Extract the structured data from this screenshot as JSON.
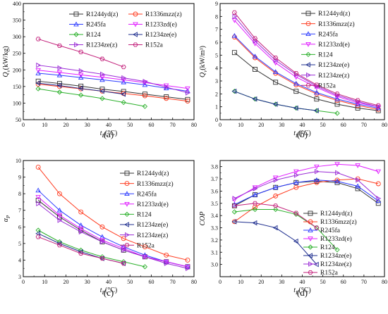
{
  "series_styles": [
    {
      "name": "R1244yd(z)",
      "color": "#333333",
      "marker": "square"
    },
    {
      "name": "R1336mzz(z)",
      "color": "#ff3b1f",
      "marker": "circle"
    },
    {
      "name": "R245fa",
      "color": "#2b3bff",
      "marker": "triangle-up"
    },
    {
      "name": "R1233zd(e)",
      "color": "#e01cff",
      "marker": "triangle-down"
    },
    {
      "name": "R124",
      "color": "#2bb02b",
      "marker": "diamond"
    },
    {
      "name": "R1234ze(e)",
      "color": "#1f2f8f",
      "marker": "triangle-left"
    },
    {
      "name": "R1234ze(z)",
      "color": "#9a2bd6",
      "marker": "triangle-right"
    },
    {
      "name": "R152a",
      "color": "#c21f7a",
      "marker": "hexagon"
    }
  ],
  "chart_data": [
    {
      "id": "a",
      "panel_label": "(a)",
      "type": "line",
      "ylabel_main": "Q",
      "ylabel_sub": "v",
      "ylabel_unit": "(kW/kg)",
      "xlabel_main": "t",
      "xlabel_sub": "E",
      "xlabel_unit": "(°C)",
      "xlim": [
        0,
        80
      ],
      "ylim": [
        50,
        400
      ],
      "xticks": [
        0,
        10,
        20,
        30,
        40,
        50,
        60,
        70,
        80
      ],
      "yticks": [
        50,
        100,
        150,
        200,
        250,
        300,
        350,
        400
      ],
      "legend_layout": "a",
      "legend_order": [
        "R1244yd(z)",
        "R1336mzz(z)",
        "R245fa",
        "R1233zd(e)",
        "R124",
        "R1234ze(e)",
        "R1234ze(z)",
        "R152a"
      ],
      "series": [
        {
          "name": "R1244yd(z)",
          "x": [
            7,
            17,
            27,
            37,
            47,
            57,
            67,
            77
          ],
          "values": [
            166,
            159,
            151,
            142,
            135,
            127,
            119,
            111
          ]
        },
        {
          "name": "R1336mzz(z)",
          "x": [
            7,
            17,
            27,
            37,
            47,
            57,
            67,
            77
          ],
          "values": [
            157,
            150,
            143,
            136,
            129,
            122,
            114,
            106
          ]
        },
        {
          "name": "R245fa",
          "x": [
            7,
            17,
            27,
            37,
            47,
            57,
            67,
            77
          ],
          "values": [
            190,
            184,
            177,
            170,
            163,
            155,
            145,
            136
          ]
        },
        {
          "name": "R1233zd(e)",
          "x": [
            7,
            17,
            27,
            37,
            47,
            57,
            67,
            77
          ],
          "values": [
            199,
            192,
            185,
            178,
            170,
            162,
            153,
            144
          ]
        },
        {
          "name": "R124",
          "x": [
            7,
            17,
            27,
            37,
            47,
            57
          ],
          "values": [
            143,
            133,
            124,
            114,
            102,
            90
          ]
        },
        {
          "name": "R1234ze(e)",
          "x": [
            7,
            17,
            27,
            37,
            47
          ],
          "values": [
            160,
            153,
            144,
            136,
            127
          ]
        },
        {
          "name": "R1234ze(z)",
          "x": [
            7,
            17,
            27,
            37,
            47,
            57,
            67,
            77
          ],
          "values": [
            214,
            206,
            197,
            187,
            176,
            165,
            148,
            131
          ]
        },
        {
          "name": "R152a",
          "x": [
            7,
            17,
            27,
            37,
            47
          ],
          "values": [
            293,
            273,
            254,
            233,
            209
          ]
        }
      ]
    },
    {
      "id": "b",
      "panel_label": "(b)",
      "type": "line",
      "ylabel_main": "Q",
      "ylabel_sub": "v",
      "ylabel_unit": "(kW/m³)",
      "xlabel_main": "t",
      "xlabel_sub": "E",
      "xlabel_unit": "(°C)",
      "xlim": [
        0,
        80
      ],
      "ylim": [
        0,
        9
      ],
      "xticks": [
        0,
        10,
        20,
        30,
        40,
        50,
        60,
        70,
        80
      ],
      "yticks": [
        0,
        1,
        2,
        3,
        4,
        5,
        6,
        7,
        8,
        9
      ],
      "legend_layout": "b",
      "legend_order": [
        "R1244yd(z)",
        "R1336mzz(z)",
        "R245fa",
        "R1233zd(e)",
        "R124",
        "R1234ze(e)",
        "R1234ze(z)",
        "R152a"
      ],
      "series": [
        {
          "name": "R1244yd(z)",
          "x": [
            7,
            17,
            27,
            37,
            47,
            57,
            67,
            77
          ],
          "values": [
            5.2,
            3.9,
            2.9,
            2.2,
            1.6,
            1.2,
            0.9,
            0.7
          ]
        },
        {
          "name": "R1336mzz(z)",
          "x": [
            7,
            17,
            27,
            37,
            47,
            57,
            67,
            77
          ],
          "values": [
            6.4,
            4.8,
            3.6,
            2.7,
            2.0,
            1.5,
            1.1,
            0.8
          ]
        },
        {
          "name": "R245fa",
          "x": [
            7,
            17,
            27,
            37,
            47,
            57,
            67,
            77
          ],
          "values": [
            6.5,
            4.9,
            3.7,
            2.8,
            2.1,
            1.6,
            1.2,
            0.9
          ]
        },
        {
          "name": "R1233zd(e)",
          "x": [
            7,
            17,
            27,
            37,
            47,
            57,
            67,
            77
          ],
          "values": [
            7.7,
            5.9,
            4.4,
            3.3,
            2.5,
            1.8,
            1.3,
            1.0
          ]
        },
        {
          "name": "R124",
          "x": [
            7,
            17,
            27,
            37,
            47,
            57
          ],
          "values": [
            2.2,
            1.6,
            1.2,
            0.9,
            0.7,
            0.5
          ]
        },
        {
          "name": "R1234ze(e)",
          "x": [
            7,
            17,
            27,
            37,
            47
          ],
          "values": [
            2.2,
            1.6,
            1.2,
            0.9,
            0.7
          ]
        },
        {
          "name": "R1234ze(z)",
          "x": [
            7,
            17,
            27,
            37,
            47,
            57,
            67,
            77
          ],
          "values": [
            8.0,
            6.1,
            4.6,
            3.5,
            2.6,
            1.9,
            1.4,
            1.0
          ]
        },
        {
          "name": "R152a",
          "x": [
            7,
            17,
            27,
            37,
            47,
            57,
            67,
            77
          ],
          "values": [
            8.3,
            6.3,
            4.8,
            3.6,
            2.7,
            2.0,
            1.5,
            1.1
          ]
        }
      ]
    },
    {
      "id": "c",
      "panel_label": "(c)",
      "type": "line",
      "ylabel_main": "α",
      "ylabel_sub": "P",
      "ylabel_unit": "",
      "xlabel_main": "t",
      "xlabel_sub": "E",
      "xlabel_unit": "(°C)",
      "xlim": [
        0,
        80
      ],
      "ylim": [
        3,
        10
      ],
      "xticks": [
        0,
        10,
        20,
        30,
        40,
        50,
        60,
        70,
        80
      ],
      "yticks": [
        3,
        4,
        5,
        6,
        7,
        8,
        9,
        10
      ],
      "legend_layout": "c",
      "legend_order": [
        "R1244yd(z)",
        "R1336mzz(z)",
        "R245fa",
        "R1233zd(e)",
        "R124",
        "R1234ze(e)",
        "R1234ze(z)",
        "R152a"
      ],
      "series": [
        {
          "name": "R1244yd(z)",
          "x": [
            7,
            17,
            27,
            37,
            47,
            57,
            67,
            77
          ],
          "values": [
            7.6,
            6.6,
            5.8,
            5.1,
            4.6,
            4.2,
            3.9,
            3.6
          ]
        },
        {
          "name": "R1336mzz(z)",
          "x": [
            7,
            17,
            27,
            37,
            47,
            57,
            67,
            77
          ],
          "values": [
            9.6,
            8.0,
            6.9,
            6.0,
            5.3,
            4.8,
            4.3,
            4.0
          ]
        },
        {
          "name": "R245fa",
          "x": [
            7,
            17,
            27,
            37,
            47,
            57,
            67,
            77
          ],
          "values": [
            8.2,
            7.0,
            6.1,
            5.4,
            4.8,
            4.3,
            3.9,
            3.6
          ]
        },
        {
          "name": "R1233zd(e)",
          "x": [
            7,
            17,
            27,
            37,
            47,
            57,
            67,
            77
          ],
          "values": [
            7.8,
            6.7,
            5.9,
            5.2,
            4.7,
            4.2,
            3.9,
            3.6
          ]
        },
        {
          "name": "R124",
          "x": [
            7,
            17,
            27,
            37,
            47,
            57
          ],
          "values": [
            5.8,
            5.1,
            4.6,
            4.2,
            3.9,
            3.6
          ]
        },
        {
          "name": "R1234ze(e)",
          "x": [
            7,
            17,
            27,
            37,
            47
          ],
          "values": [
            5.6,
            5.0,
            4.5,
            4.1,
            3.8
          ]
        },
        {
          "name": "R1234ze(z)",
          "x": [
            7,
            17,
            27,
            37,
            47,
            57,
            67,
            77
          ],
          "values": [
            7.4,
            6.4,
            5.7,
            5.1,
            4.6,
            4.2,
            3.8,
            3.5
          ]
        },
        {
          "name": "R152a",
          "x": [
            7,
            17,
            27,
            37,
            47
          ],
          "values": [
            5.4,
            4.9,
            4.4,
            4.1,
            3.8
          ]
        }
      ]
    },
    {
      "id": "d",
      "panel_label": "(d)",
      "type": "line",
      "ylabel_main": "COP",
      "ylabel_sub": "",
      "ylabel_unit": "",
      "xlabel_main": "t",
      "xlabel_sub": "E",
      "xlabel_unit": "(°C)",
      "xlim": [
        0,
        80
      ],
      "ylim": [
        2.9,
        3.85
      ],
      "xticks": [
        0,
        10,
        20,
        30,
        40,
        50,
        60,
        70,
        80
      ],
      "yticks": [
        3.0,
        3.1,
        3.2,
        3.3,
        3.4,
        3.5,
        3.6,
        3.7,
        3.8
      ],
      "legend_layout": "d",
      "legend_order": [
        "R1244yd(z)",
        "R1336mzz(z)",
        "R245fa",
        "R1233zd(e)",
        "R124",
        "R1234ze(e)",
        "R1234ze(z)",
        "R152a"
      ],
      "series": [
        {
          "name": "R1244yd(z)",
          "x": [
            7,
            17,
            27,
            37,
            47,
            57,
            67,
            77
          ],
          "values": [
            3.48,
            3.57,
            3.63,
            3.67,
            3.68,
            3.67,
            3.62,
            3.5
          ]
        },
        {
          "name": "R1336mzz(z)",
          "x": [
            7,
            17,
            27,
            37,
            47,
            57,
            67,
            77
          ],
          "values": [
            3.35,
            3.47,
            3.56,
            3.63,
            3.67,
            3.69,
            3.7,
            3.66
          ]
        },
        {
          "name": "R245fa",
          "x": [
            7,
            17,
            27,
            37,
            47,
            57,
            67,
            77
          ],
          "values": [
            3.49,
            3.57,
            3.63,
            3.67,
            3.69,
            3.68,
            3.64,
            3.52
          ]
        },
        {
          "name": "R1233zd(e)",
          "x": [
            7,
            17,
            27,
            37,
            47,
            57,
            67,
            77
          ],
          "values": [
            3.53,
            3.63,
            3.71,
            3.76,
            3.8,
            3.82,
            3.81,
            3.76
          ]
        },
        {
          "name": "R124",
          "x": [
            7,
            17,
            27,
            37,
            47,
            57
          ],
          "values": [
            3.43,
            3.45,
            3.45,
            3.41,
            3.3,
            3.12
          ]
        },
        {
          "name": "R1234ze(e)",
          "x": [
            7,
            17,
            27,
            37,
            47
          ],
          "values": [
            3.35,
            3.34,
            3.3,
            3.19,
            3.0
          ]
        },
        {
          "name": "R1234ze(z)",
          "x": [
            7,
            17,
            27,
            37,
            47,
            57,
            67,
            77
          ],
          "values": [
            3.54,
            3.62,
            3.69,
            3.73,
            3.76,
            3.75,
            3.69,
            3.54
          ]
        },
        {
          "name": "R152a",
          "x": [
            7,
            17,
            27,
            37,
            47
          ],
          "values": [
            3.48,
            3.5,
            3.48,
            3.42,
            3.3
          ]
        }
      ]
    }
  ]
}
